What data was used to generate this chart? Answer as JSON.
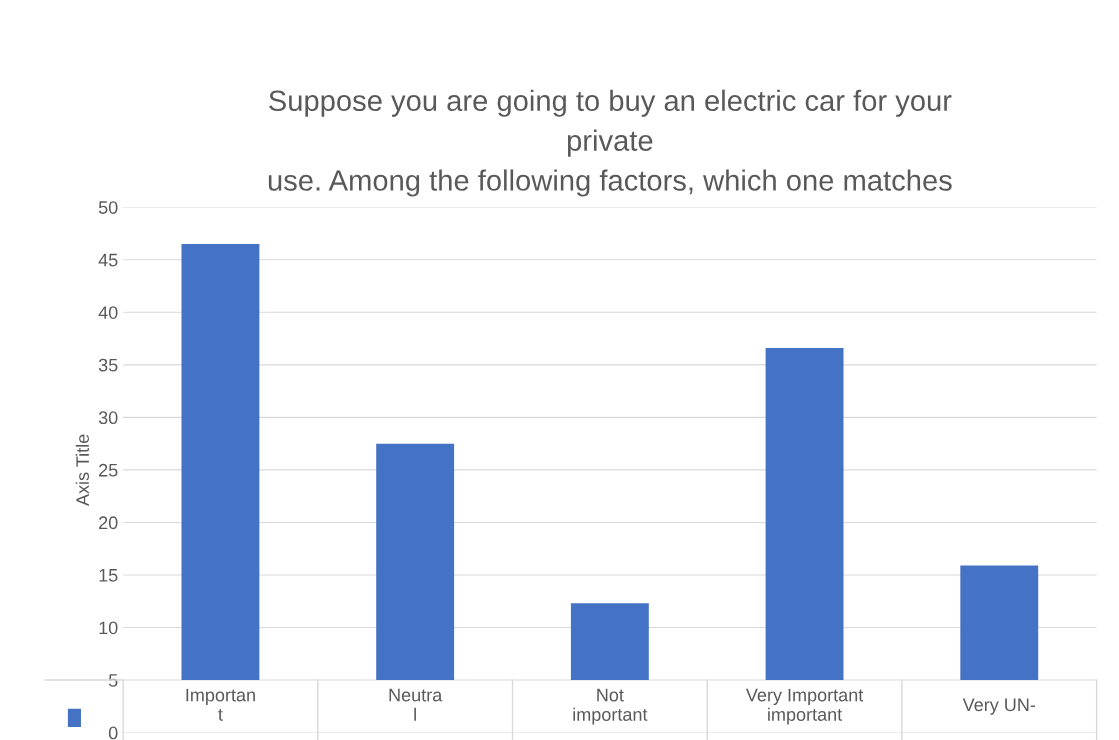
{
  "chart_data": {
    "type": "bar",
    "title": "Suppose you are going to buy an electric car for your\nprivate\nuse. Among the following factors, which one matches",
    "ylabel": "Axis Title",
    "categories": [
      "Importan\nt",
      "Neutra\nl",
      "Not\nimportant",
      "Very Important\nimportant",
      "Very UN-"
    ],
    "values": [
      41.5,
      22.5,
      7.3,
      31.6,
      10.9
    ],
    "base": [
      5,
      5,
      5,
      5,
      5
    ],
    "color": "#4472c4",
    "ylim": [
      0,
      50
    ],
    "yticks": [
      0,
      5,
      10,
      15,
      20,
      25,
      30,
      35,
      40,
      45,
      50
    ],
    "grid": "y"
  }
}
